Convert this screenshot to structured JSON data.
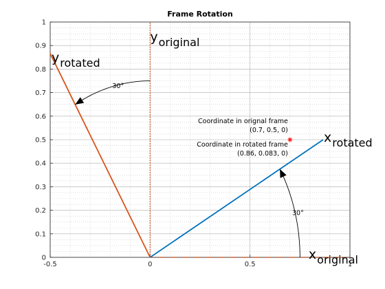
{
  "chart_data": {
    "type": "line",
    "title": "Frame Rotation",
    "xlim": [
      -0.5,
      1
    ],
    "ylim": [
      0,
      1
    ],
    "x_ticks": [
      -0.5,
      0,
      0.5,
      1
    ],
    "x_tick_labels": [
      "-0.5",
      "0",
      "0.5",
      "1"
    ],
    "y_ticks": [
      0,
      0.1,
      0.2,
      0.3,
      0.4,
      0.5,
      0.6,
      0.7,
      0.8,
      0.9,
      1
    ],
    "y_tick_labels": [
      "0",
      "0.1",
      "0.2",
      "0.3",
      "0.4",
      "0.5",
      "0.6",
      "0.7",
      "0.8",
      "0.9",
      "1"
    ],
    "grid": true,
    "minor_grid": true,
    "series": [
      {
        "x": [
          0,
          1
        ],
        "y": [
          0,
          0
        ],
        "style": "dotted",
        "color": "#d95319"
      },
      {
        "x": [
          0,
          0
        ],
        "y": [
          0,
          1
        ],
        "style": "dotted",
        "color": "#d95319"
      },
      {
        "x": [
          0,
          0.866
        ],
        "y": [
          0,
          0.5
        ],
        "style": "solid",
        "color": "#0072bd"
      },
      {
        "x": [
          0,
          -0.5
        ],
        "y": [
          0,
          0.866
        ],
        "style": "solid",
        "color": "#d95319"
      }
    ],
    "point": {
      "x": 0.7,
      "y": 0.5,
      "marker": "*",
      "color": "#ff0000"
    },
    "axis_labels": {
      "x_original": {
        "main": "x",
        "sub": "original",
        "x": 0.9,
        "y": 0
      },
      "y_original": {
        "main": "y",
        "sub": "original",
        "x": 0,
        "y": 0.9
      },
      "x_rotated": {
        "main": "x",
        "sub": "rotated",
        "x": 0.866,
        "y": 0.5
      },
      "y_rotated": {
        "main": "y",
        "sub": "rotated",
        "x": -0.5,
        "y": 0.866
      }
    },
    "annotations": [
      {
        "lines": [
          "Coordinate in orignal frame",
          "(0.7, 0.5, 0)"
        ],
        "x": 0.69,
        "y": 0.5
      },
      {
        "lines": [
          "Coordinate in rotated frame",
          "(0.86, 0.083, 0)"
        ],
        "x": 0.69,
        "y": 0.4
      }
    ],
    "angle_arcs": [
      {
        "label": "30°",
        "radius": 0.75,
        "from_deg": 0,
        "to_deg": 30,
        "label_x": 0.74,
        "label_y": 0.18
      },
      {
        "label": "30°",
        "radius": 0.75,
        "from_deg": 90,
        "to_deg": 120,
        "label_x": -0.16,
        "label_y": 0.72
      }
    ]
  }
}
